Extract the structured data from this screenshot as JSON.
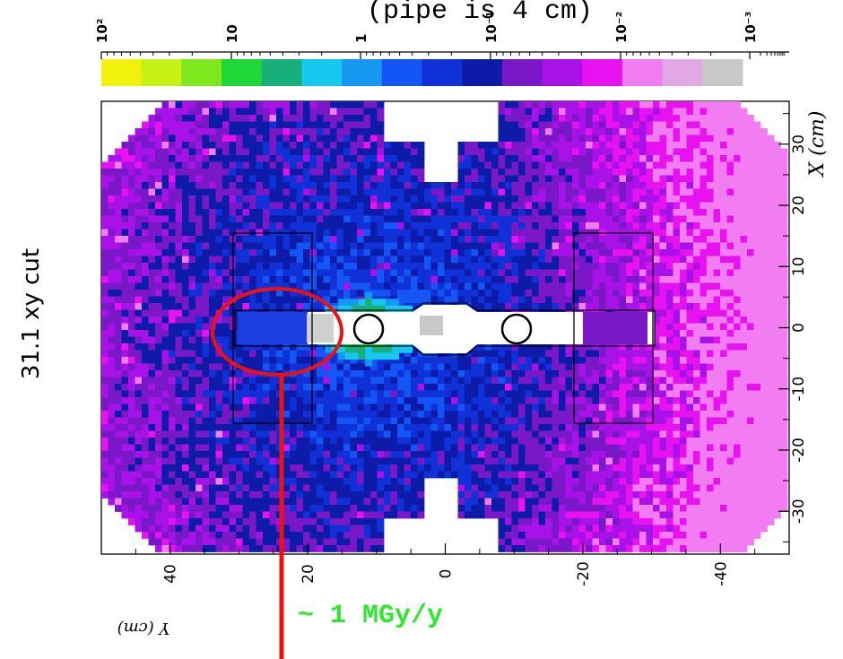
{
  "chart_data": {
    "type": "heatmap",
    "title": "(pipe is 4 cm)",
    "cut_label": "31.1 xy cut",
    "xlabel": "X (cm)",
    "ylabel": "Y (cm)",
    "x_range": [
      -37,
      37
    ],
    "y_range": [
      -50,
      50
    ],
    "x_ticks": [
      "-30",
      "-20",
      "-10",
      "0",
      "10",
      "20",
      "30"
    ],
    "y_ticks": [
      "40",
      "20",
      "0",
      "-20",
      "-40"
    ],
    "colorbar": {
      "scale": "log",
      "labels": [
        "10²",
        "10",
        "1",
        "10⁻¹",
        "10⁻²",
        "10⁻³"
      ],
      "colors": [
        "#f2f20d",
        "#c6f214",
        "#7ee81c",
        "#1ed838",
        "#17b07a",
        "#14c8ee",
        "#1598f2",
        "#1455f5",
        "#1030d8",
        "#0c1ca8",
        "#7a18c8",
        "#a812e8",
        "#e812f0",
        "#f27cf2",
        "#e2a8e6",
        "#c8c8c8"
      ]
    },
    "annotation": "~ 1 MGy/y",
    "colors": {
      "annotation_text": "#2ee82e",
      "annotation_line": "#ee1111",
      "background_blue": "#1a46e6"
    }
  }
}
